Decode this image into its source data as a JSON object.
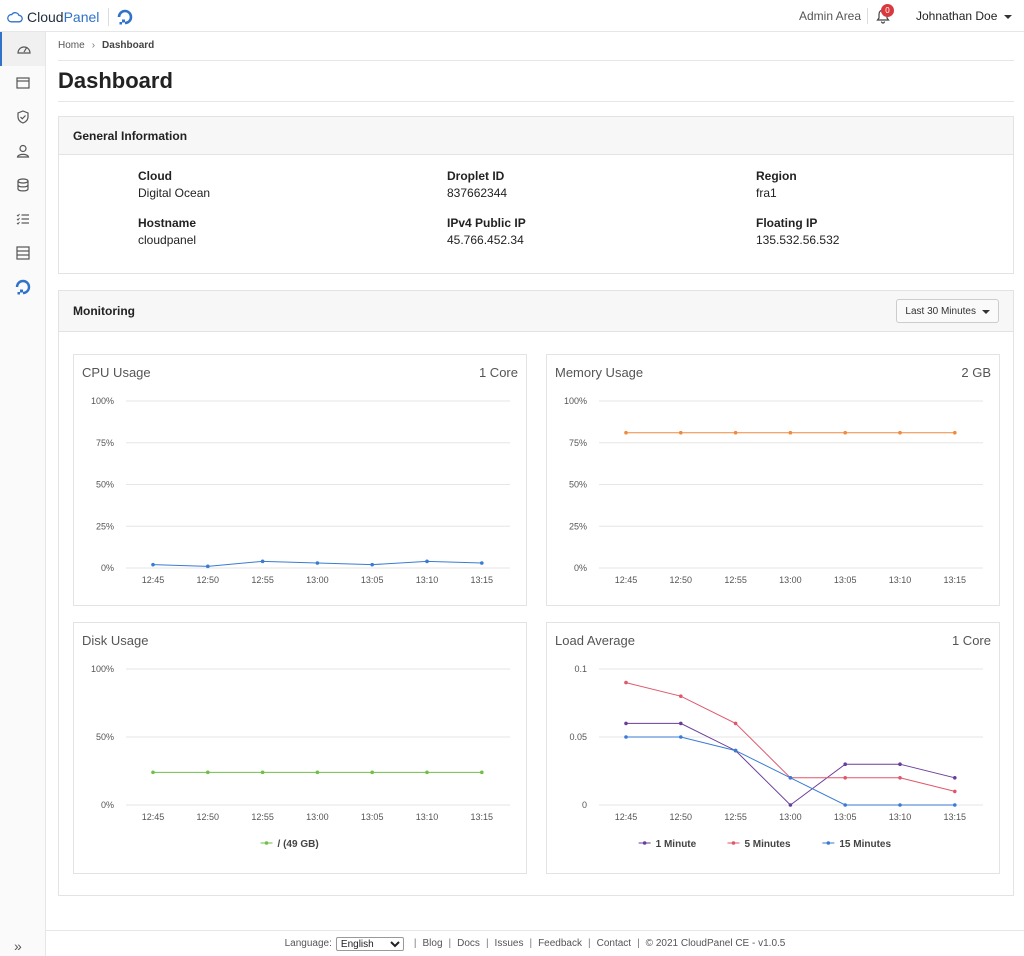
{
  "brand": {
    "name_part1": "Cloud",
    "name_part2": "Panel"
  },
  "topbar": {
    "admin_area": "Admin Area",
    "notification_count": "0",
    "user_name": "Johnathan Doe"
  },
  "breadcrumb": {
    "home": "Home",
    "current": "Dashboard"
  },
  "page": {
    "title": "Dashboard"
  },
  "general_info": {
    "title": "General Information",
    "items": [
      {
        "label": "Cloud",
        "value": "Digital Ocean"
      },
      {
        "label": "Droplet ID",
        "value": "837662344"
      },
      {
        "label": "Region",
        "value": "fra1"
      },
      {
        "label": "Hostname",
        "value": "cloudpanel"
      },
      {
        "label": "IPv4 Public IP",
        "value": "45.766.452.34"
      },
      {
        "label": "Floating IP",
        "value": "135.532.56.532"
      }
    ]
  },
  "monitoring": {
    "title": "Monitoring",
    "range_label": "Last 30 Minutes"
  },
  "colors": {
    "accent": "#2f72c8",
    "cpu": "#3a7bd5",
    "memory": "#f08a3c",
    "disk": "#6fbf4a",
    "load_1": "#6a3d9a",
    "load_5": "#e0566b",
    "load_15": "#3a7bd5"
  },
  "chart_data": [
    {
      "type": "line",
      "title": "CPU Usage",
      "subtitle": "1 Core",
      "x": [
        "12:45",
        "12:50",
        "12:55",
        "13:00",
        "13:05",
        "13:10",
        "13:15"
      ],
      "ytick_labels": [
        "0%",
        "25%",
        "50%",
        "75%",
        "100%"
      ],
      "ylim": [
        0,
        100
      ],
      "series": [
        {
          "name": "",
          "values": [
            2,
            1,
            4,
            3,
            2,
            4,
            3
          ],
          "color": "#3a7bd5"
        }
      ]
    },
    {
      "type": "line",
      "title": "Memory Usage",
      "subtitle": "2 GB",
      "x": [
        "12:45",
        "12:50",
        "12:55",
        "13:00",
        "13:05",
        "13:10",
        "13:15"
      ],
      "ytick_labels": [
        "0%",
        "25%",
        "50%",
        "75%",
        "100%"
      ],
      "ylim": [
        0,
        100
      ],
      "series": [
        {
          "name": "",
          "values": [
            81,
            81,
            81,
            81,
            81,
            81,
            81
          ],
          "color": "#f08a3c"
        }
      ]
    },
    {
      "type": "line",
      "title": "Disk Usage",
      "subtitle": "",
      "x": [
        "12:45",
        "12:50",
        "12:55",
        "13:00",
        "13:05",
        "13:10",
        "13:15"
      ],
      "ytick_labels": [
        "0%",
        "50%",
        "100%"
      ],
      "ylim": [
        0,
        100
      ],
      "legend": "bottom",
      "series": [
        {
          "name": "/ (49 GB)",
          "values": [
            24,
            24,
            24,
            24,
            24,
            24,
            24
          ],
          "color": "#6fbf4a"
        }
      ]
    },
    {
      "type": "line",
      "title": "Load Average",
      "subtitle": "1 Core",
      "x": [
        "12:45",
        "12:50",
        "12:55",
        "13:00",
        "13:05",
        "13:10",
        "13:15"
      ],
      "ytick_labels": [
        "0",
        "0.05",
        "0.1"
      ],
      "ylim": [
        0,
        0.1
      ],
      "legend": "bottom",
      "series": [
        {
          "name": "1 Minute",
          "values": [
            0.06,
            0.06,
            0.04,
            0,
            0.03,
            0.03,
            0.02
          ],
          "color": "#6a3d9a"
        },
        {
          "name": "5 Minutes",
          "values": [
            0.09,
            0.08,
            0.06,
            0.02,
            0.02,
            0.02,
            0.01
          ],
          "color": "#e0566b"
        },
        {
          "name": "15 Minutes",
          "values": [
            0.05,
            0.05,
            0.04,
            0.02,
            0,
            0,
            0
          ],
          "color": "#3a7bd5"
        }
      ]
    }
  ],
  "footer": {
    "language_label": "Language:",
    "language_value": "English",
    "links": [
      "Blog",
      "Docs",
      "Issues",
      "Feedback",
      "Contact"
    ],
    "copyright": "© 2021 CloudPanel CE - v1.0.5"
  }
}
